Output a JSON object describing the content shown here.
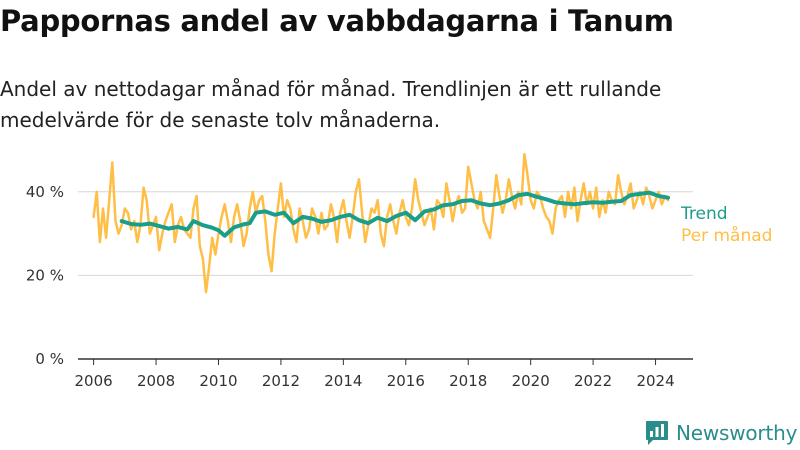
{
  "title": "Pappornas andel av vabbdagarna i Tanum",
  "subtitle": "Andel av nettodagar månad för månad. Trendlinjen är ett rullande medelvärde för de senaste tolv månaderna.",
  "brand": {
    "name": "Newsworthy",
    "color": "#2b8c8c"
  },
  "chart_data": {
    "type": "line",
    "title": "",
    "xlabel": "",
    "ylabel": "",
    "xlim": [
      2005.5,
      2025.2
    ],
    "ylim": [
      0,
      50
    ],
    "y_ticks": [
      {
        "value": 0,
        "label": "0 %"
      },
      {
        "value": 20,
        "label": "20 %"
      },
      {
        "value": 40,
        "label": "40 %"
      }
    ],
    "x_ticks": [
      {
        "value": 2006,
        "label": "2006"
      },
      {
        "value": 2008,
        "label": "2008"
      },
      {
        "value": 2010,
        "label": "2010"
      },
      {
        "value": 2012,
        "label": "2012"
      },
      {
        "value": 2014,
        "label": "2014"
      },
      {
        "value": 2016,
        "label": "2016"
      },
      {
        "value": 2018,
        "label": "2018"
      },
      {
        "value": 2020,
        "label": "2020"
      },
      {
        "value": 2022,
        "label": "2022"
      },
      {
        "value": 2024,
        "label": "2024"
      }
    ],
    "grid": true,
    "legend": "right, inline labels at line ends",
    "series": [
      {
        "name": "Per månad",
        "color": "#ffbe46",
        "x": [
          2006.0,
          2006.1,
          2006.2,
          2006.3,
          2006.4,
          2006.5,
          2006.6,
          2006.7,
          2006.8,
          2006.9,
          2007.0,
          2007.1,
          2007.2,
          2007.3,
          2007.4,
          2007.5,
          2007.6,
          2007.7,
          2007.8,
          2007.9,
          2008.0,
          2008.1,
          2008.2,
          2008.3,
          2008.4,
          2008.5,
          2008.6,
          2008.7,
          2008.8,
          2008.9,
          2009.0,
          2009.1,
          2009.2,
          2009.3,
          2009.4,
          2009.5,
          2009.6,
          2009.7,
          2009.8,
          2009.9,
          2010.0,
          2010.1,
          2010.2,
          2010.3,
          2010.4,
          2010.5,
          2010.6,
          2010.7,
          2010.8,
          2010.9,
          2011.0,
          2011.1,
          2011.2,
          2011.3,
          2011.4,
          2011.5,
          2011.6,
          2011.7,
          2011.8,
          2011.9,
          2012.0,
          2012.1,
          2012.2,
          2012.3,
          2012.4,
          2012.5,
          2012.6,
          2012.7,
          2012.8,
          2012.9,
          2013.0,
          2013.1,
          2013.2,
          2013.3,
          2013.4,
          2013.5,
          2013.6,
          2013.7,
          2013.8,
          2013.9,
          2014.0,
          2014.1,
          2014.2,
          2014.3,
          2014.4,
          2014.5,
          2014.6,
          2014.7,
          2014.8,
          2014.9,
          2015.0,
          2015.1,
          2015.2,
          2015.3,
          2015.4,
          2015.5,
          2015.6,
          2015.7,
          2015.8,
          2015.9,
          2016.0,
          2016.1,
          2016.2,
          2016.3,
          2016.4,
          2016.5,
          2016.6,
          2016.7,
          2016.8,
          2016.9,
          2017.0,
          2017.1,
          2017.2,
          2017.3,
          2017.4,
          2017.5,
          2017.6,
          2017.7,
          2017.8,
          2017.9,
          2018.0,
          2018.1,
          2018.2,
          2018.3,
          2018.4,
          2018.5,
          2018.6,
          2018.7,
          2018.8,
          2018.9,
          2019.0,
          2019.1,
          2019.2,
          2019.3,
          2019.4,
          2019.5,
          2019.6,
          2019.7,
          2019.8,
          2019.9,
          2020.0,
          2020.1,
          2020.2,
          2020.3,
          2020.4,
          2020.5,
          2020.6,
          2020.7,
          2020.8,
          2020.9,
          2021.0,
          2021.1,
          2021.2,
          2021.3,
          2021.4,
          2021.5,
          2021.6,
          2021.7,
          2021.8,
          2021.9,
          2022.0,
          2022.1,
          2022.2,
          2022.3,
          2022.4,
          2022.5,
          2022.6,
          2022.7,
          2022.8,
          2022.9,
          2023.0,
          2023.1,
          2023.2,
          2023.3,
          2023.4,
          2023.5,
          2023.6,
          2023.7,
          2023.8,
          2023.9,
          2024.0,
          2024.1,
          2024.2,
          2024.3,
          2024.4
        ],
        "y": [
          34,
          40,
          28,
          36,
          29,
          38,
          47,
          33,
          30,
          32,
          36,
          35,
          31,
          33,
          28,
          32,
          41,
          38,
          30,
          32,
          34,
          26,
          30,
          33,
          35,
          37,
          28,
          32,
          34,
          31,
          30,
          29,
          36,
          39,
          27,
          24,
          16,
          22,
          29,
          25,
          30,
          34,
          37,
          33,
          28,
          34,
          37,
          33,
          27,
          30,
          36,
          40,
          35,
          38,
          39,
          33,
          25,
          21,
          30,
          36,
          42,
          34,
          38,
          36,
          31,
          28,
          36,
          33,
          29,
          31,
          36,
          34,
          30,
          35,
          31,
          32,
          37,
          34,
          28,
          35,
          38,
          33,
          29,
          34,
          40,
          43,
          35,
          28,
          32,
          36,
          35,
          38,
          30,
          27,
          34,
          37,
          33,
          30,
          35,
          38,
          34,
          32,
          36,
          43,
          38,
          35,
          32,
          34,
          36,
          31,
          38,
          37,
          34,
          42,
          38,
          33,
          37,
          39,
          35,
          36,
          46,
          42,
          38,
          36,
          40,
          33,
          31,
          29,
          36,
          44,
          39,
          35,
          38,
          43,
          39,
          36,
          40,
          37,
          49,
          44,
          38,
          36,
          40,
          39,
          36,
          34,
          33,
          30,
          36,
          38,
          39,
          34,
          40,
          36,
          41,
          33,
          38,
          42,
          37,
          40,
          36,
          41,
          34,
          38,
          35,
          40,
          38,
          37,
          44,
          40,
          37,
          39,
          42,
          36,
          38,
          40,
          37,
          41,
          39,
          36,
          38,
          40,
          37,
          39,
          38
        ]
      },
      {
        "name": "Trend",
        "color": "#1a9e8c",
        "x": [
          2006.9,
          2007.2,
          2007.5,
          2007.8,
          2008.1,
          2008.4,
          2008.7,
          2009.0,
          2009.2,
          2009.5,
          2009.8,
          2010.0,
          2010.2,
          2010.5,
          2010.8,
          2011.0,
          2011.2,
          2011.5,
          2011.8,
          2012.1,
          2012.4,
          2012.7,
          2013.0,
          2013.3,
          2013.6,
          2013.9,
          2014.2,
          2014.5,
          2014.8,
          2015.1,
          2015.4,
          2015.7,
          2016.0,
          2016.3,
          2016.6,
          2016.9,
          2017.2,
          2017.5,
          2017.8,
          2018.1,
          2018.4,
          2018.7,
          2019.0,
          2019.3,
          2019.6,
          2019.9,
          2020.2,
          2020.5,
          2020.8,
          2021.1,
          2021.4,
          2021.7,
          2022.0,
          2022.3,
          2022.6,
          2022.9,
          2023.2,
          2023.5,
          2023.8,
          2024.1,
          2024.4
        ],
        "y": [
          33,
          32.3,
          32.1,
          32.4,
          31.8,
          31.2,
          31.6,
          31.0,
          33.0,
          32.0,
          31.4,
          30.8,
          29.5,
          31.5,
          32.2,
          32.5,
          35.0,
          35.3,
          34.5,
          35.0,
          32.5,
          34.0,
          33.6,
          32.8,
          33.2,
          34.0,
          34.5,
          33.2,
          32.5,
          33.8,
          33.0,
          34.2,
          35.0,
          33.2,
          35.3,
          35.8,
          36.8,
          37.0,
          37.8,
          38.0,
          37.2,
          36.8,
          37.2,
          38.0,
          39.2,
          39.5,
          38.8,
          38.2,
          37.5,
          37.2,
          37.0,
          37.3,
          37.5,
          37.4,
          37.6,
          37.8,
          39.2,
          39.5,
          39.8,
          39.0,
          38.6
        ]
      }
    ]
  }
}
